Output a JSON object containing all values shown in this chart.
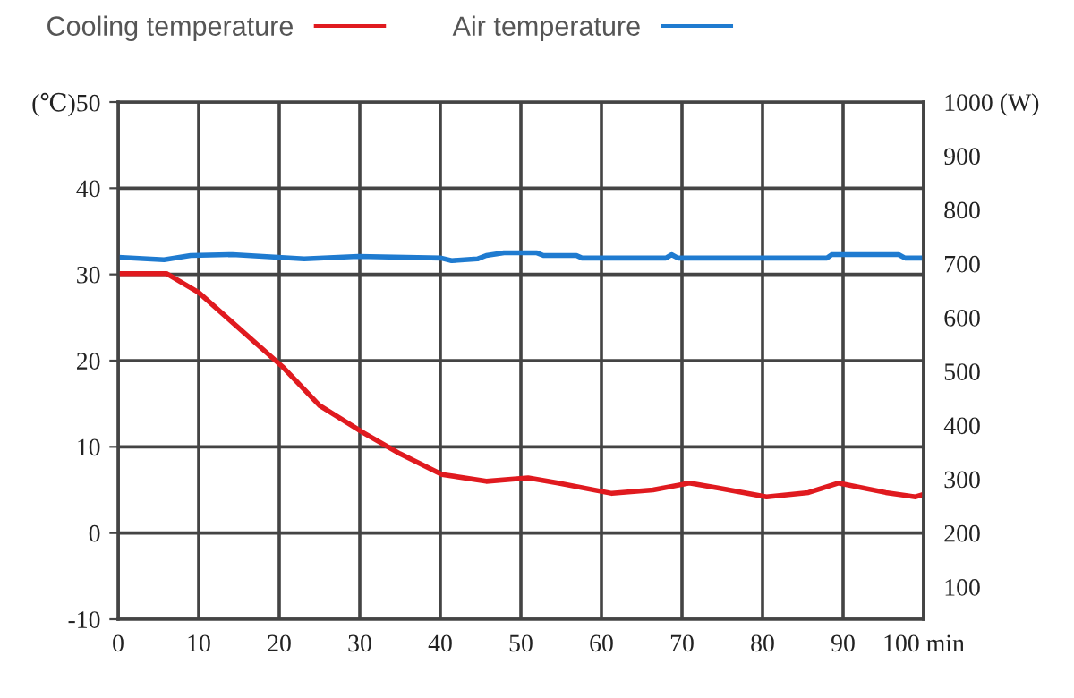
{
  "chart_data": {
    "type": "line",
    "xlim": [
      0,
      100
    ],
    "xticks": [
      0,
      10,
      20,
      30,
      40,
      50,
      60,
      70,
      80,
      90,
      {
        "value": 100,
        "label": "100 min"
      }
    ],
    "ylim": [
      -10,
      50
    ],
    "yticks": [
      -10,
      0,
      10,
      20,
      30,
      40,
      {
        "value": 50,
        "label": "(℃)50"
      }
    ],
    "y2lim": [
      40,
      1000
    ],
    "y2ticks": [
      100,
      200,
      300,
      400,
      500,
      600,
      700,
      800,
      900,
      {
        "value": 1000,
        "label": "1000 (W)"
      }
    ],
    "grid": true,
    "legend": "top left",
    "line_style": "solid",
    "marker": "none",
    "series": [
      {
        "name": "Cooling temperature",
        "color": "#e01a1f",
        "x": [
          0,
          6,
          10,
          20.4,
          25,
          30.5,
          35,
          40.2,
          45.7,
          50.9,
          54.6,
          61.3,
          66.4,
          70.9,
          74.6,
          80.5,
          85.7,
          89.4,
          95.3,
          99,
          100
        ],
        "values": [
          30.1,
          30.1,
          27.9,
          19.3,
          14.8,
          11.6,
          9.2,
          6.8,
          6.0,
          6.4,
          5.8,
          4.6,
          5.0,
          5.8,
          5.2,
          4.2,
          4.7,
          5.8,
          4.7,
          4.2,
          4.5
        ]
      },
      {
        "name": "Air temperature",
        "color": "#1f7bd0",
        "x": [
          0,
          5.7,
          9,
          14.2,
          23.1,
          29.8,
          40.1,
          41.4,
          44.6,
          45.7,
          47.9,
          52,
          52.8,
          56.9,
          57.6,
          68,
          68.7,
          69.5,
          88,
          88.6,
          96.9,
          97.7,
          100
        ],
        "values": [
          32.0,
          31.7,
          32.2,
          32.3,
          31.8,
          32.1,
          31.9,
          31.6,
          31.8,
          32.2,
          32.5,
          32.5,
          32.2,
          32.2,
          31.9,
          31.9,
          32.3,
          31.9,
          31.9,
          32.3,
          32.3,
          31.9,
          31.9
        ]
      }
    ]
  }
}
